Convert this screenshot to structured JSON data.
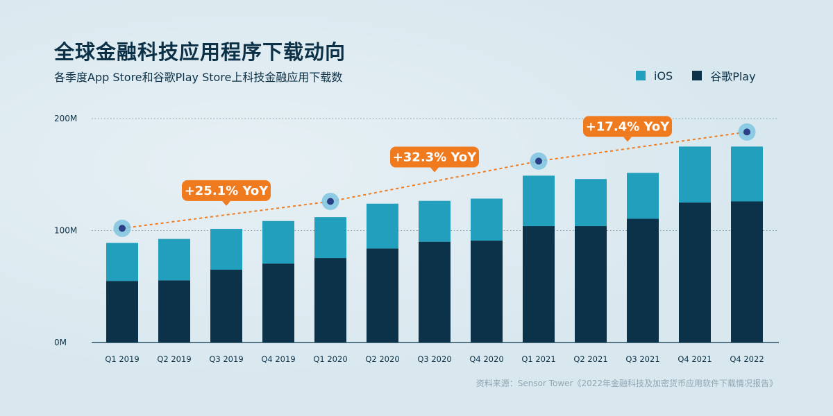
{
  "title": "全球金融科技应用程序下载动向",
  "subtitle": "各季度App Store和谷歌Play Store上科技金融应用下载数",
  "legend": [
    {
      "label": "iOS",
      "color": "#219fbd"
    },
    {
      "label": "谷歌Play",
      "color": "#0b3249"
    }
  ],
  "source": "资料来源：Sensor Tower《2022年金融科技及加密货币应用软件下载情况报告》",
  "chart_data": {
    "type": "bar",
    "stacked": true,
    "categories": [
      "Q1 2019",
      "Q2 2019",
      "Q3 2019",
      "Q4 2019",
      "Q1 2020",
      "Q2 2020",
      "Q3 2020",
      "Q4 2020",
      "Q1 2021",
      "Q2 2021",
      "Q3 2021",
      "Q4 2021",
      "Q4 2022"
    ],
    "series": [
      {
        "name": "谷歌Play",
        "color": "#0b3249",
        "values": [
          55,
          55.5,
          65,
          70.5,
          75.5,
          84,
          90,
          91,
          104,
          104,
          110.5,
          125,
          126
        ]
      },
      {
        "name": "iOS",
        "color": "#219fbd",
        "values": [
          34,
          37,
          36.5,
          38,
          36.5,
          40,
          36.5,
          37.5,
          45,
          42,
          41,
          50,
          49
        ]
      }
    ],
    "y_ticks": [
      {
        "value": 0,
        "label": "0M"
      },
      {
        "value": 100,
        "label": "100M"
      },
      {
        "value": 200,
        "label": "200M"
      }
    ],
    "ylim": [
      0,
      200
    ],
    "grid": true,
    "legend_position": "top-right",
    "trend_line": {
      "color": "#f07b1e",
      "points": [
        {
          "category": "Q1 2019",
          "value": 102
        },
        {
          "category": "Q1 2020",
          "value": 126
        },
        {
          "category": "Q1 2021",
          "value": 162
        },
        {
          "category": "Q4 2022",
          "value": 188
        }
      ]
    },
    "annotations": [
      {
        "text": "+25.1% YoY",
        "between": [
          "Q1 2019",
          "Q1 2020"
        ],
        "color": "#f07b1e"
      },
      {
        "text": "+32.3% YoY",
        "between": [
          "Q1 2020",
          "Q1 2021"
        ],
        "color": "#f07b1e"
      },
      {
        "text": "+17.4% YoY",
        "between": [
          "Q1 2021",
          "Q4 2022"
        ],
        "color": "#f07b1e"
      }
    ]
  }
}
